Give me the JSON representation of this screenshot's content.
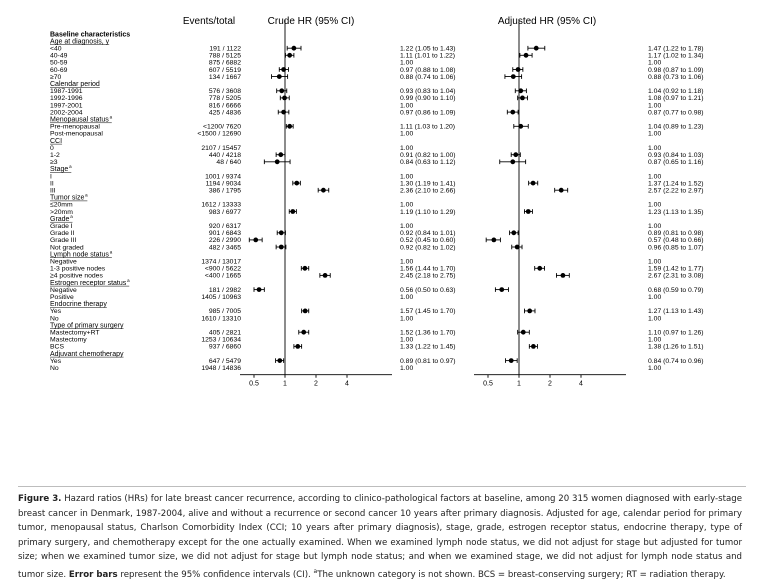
{
  "header": {
    "events_total": "Events/total",
    "crude_hr": "Crude HR (95% CI)",
    "adjusted_hr": "Adjusted HR (95% CI)"
  },
  "caption": {
    "fig_label": "Figure 3.",
    "text": " Hazard ratios (HRs) for late breast cancer recurrence, according to clinico-pathological factors at baseline, among 20 315 women diagnosed with early-stage breast cancer in Denmark, 1987-2004, alive and without a recurrence or second cancer 10 years after primary diagnosis. Adjusted for age, calendar period for primary tumor, menopausal status, Charlson Comorbidity Index (CCI; 10 years after primary diagnosis), stage, grade, estrogen receptor status, endocrine therapy, type of primary surgery, and chemotherapy except for the one actually examined. When we examined lymph node status, we did not adjust for stage but adjusted for tumor size; when we examined tumor size, we did not adjust for stage but lymph node status; and when we examined stage, we did not adjust for lymph node status and tumor size. ",
    "bold": "Error bars",
    "tail": " represent the 95% confidence intervals (CI). ",
    "footnote_mark": "a",
    "footnote": "The unknown category is not shown. BCS = breast-conserving surgery; RT = radiation therapy."
  },
  "chart_data": {
    "type": "forest",
    "scale": "log",
    "xlim": [
      0.5,
      4
    ],
    "ticks": [
      0.5,
      1,
      2,
      4
    ],
    "tick_labels": [
      "0.5",
      "1",
      "2",
      "4"
    ],
    "panels": [
      "Crude HR (95% CI)",
      "Adjusted HR (95% CI)"
    ],
    "rows": [
      {
        "label": "Baseline characteristics",
        "kind": "title"
      },
      {
        "label": "Age at diagnosis, y",
        "kind": "header"
      },
      {
        "label": "<40",
        "events": "191 / 1122",
        "crude": [
          1.22,
          1.05,
          1.43
        ],
        "crude_text": "1.22 (1.05 to 1.43)",
        "adj": [
          1.47,
          1.22,
          1.78
        ],
        "adj_text": "1.47 (1.22 to 1.78)"
      },
      {
        "label": "40-49",
        "events": "788 / 5125",
        "crude": [
          1.11,
          1.01,
          1.22
        ],
        "crude_text": "1.11 (1.01 to 1.22)",
        "adj": [
          1.17,
          1.02,
          1.34
        ],
        "adj_text": "1.17 (1.02 to 1.34)"
      },
      {
        "label": "50-59",
        "events": "875 / 6882",
        "ref": true,
        "crude_text": "1.00",
        "adj_text": "1.00"
      },
      {
        "label": "60-69",
        "events": "607 / 5519",
        "crude": [
          0.97,
          0.88,
          1.08
        ],
        "crude_text": "0.97 (0.88 to 1.08)",
        "adj": [
          0.98,
          0.87,
          1.09
        ],
        "adj_text": "0.98 (0.87 to 1.09)"
      },
      {
        "label": "≥70",
        "events": "134 / 1667",
        "crude": [
          0.88,
          0.74,
          1.06
        ],
        "crude_text": "0.88 (0.74 to 1.06)",
        "adj": [
          0.88,
          0.73,
          1.06
        ],
        "adj_text": "0.88 (0.73 to 1.06)"
      },
      {
        "label": "Calendar period",
        "kind": "header"
      },
      {
        "label": "1987-1991",
        "events": "576 / 3608",
        "crude": [
          0.93,
          0.83,
          1.04
        ],
        "crude_text": "0.93 (0.83 to 1.04)",
        "adj": [
          1.04,
          0.92,
          1.18
        ],
        "adj_text": "1.04 (0.92 to 1.18)"
      },
      {
        "label": "1992-1996",
        "events": "778 / 5205",
        "crude": [
          0.99,
          0.9,
          1.1
        ],
        "crude_text": "0.99 (0.90 to 1.10)",
        "adj": [
          1.08,
          0.97,
          1.21
        ],
        "adj_text": "1.08 (0.97 to 1.21)"
      },
      {
        "label": "1997-2001",
        "events": "816 / 6666",
        "ref": true,
        "crude_text": "1.00",
        "adj_text": "1.00"
      },
      {
        "label": "2002-2004",
        "events": "425 / 4836",
        "crude": [
          0.97,
          0.86,
          1.09
        ],
        "crude_text": "0.97 (0.86 to 1.09)",
        "adj": [
          0.87,
          0.77,
          0.98
        ],
        "adj_text": "0.87 (0.77 to 0.98)"
      },
      {
        "label": "Menopausal status",
        "sup": "a",
        "kind": "header"
      },
      {
        "label": "Pre-menopausal",
        "events": "<1200/ 7620",
        "crude": [
          1.11,
          1.03,
          1.2
        ],
        "crude_text": "1.11 (1.03 to 1.20)",
        "adj": [
          1.04,
          0.89,
          1.23
        ],
        "adj_text": "1.04 (0.89 to 1.23)"
      },
      {
        "label": "Post-menopausal",
        "events": "<1500 / 12690",
        "ref": true,
        "crude_text": "1.00",
        "adj_text": "1.00"
      },
      {
        "label": "CCI",
        "kind": "header"
      },
      {
        "label": "0",
        "events": "2107 / 15457",
        "ref": true,
        "crude_text": "1.00",
        "adj_text": "1.00"
      },
      {
        "label": "1-2",
        "events": "440 / 4218",
        "crude": [
          0.91,
          0.82,
          1.0
        ],
        "crude_text": "0.91 (0.82 to 1.00)",
        "adj": [
          0.93,
          0.84,
          1.03
        ],
        "adj_text": "0.93 (0.84 to 1.03)"
      },
      {
        "label": "≥3",
        "events": "48 / 640",
        "crude": [
          0.84,
          0.63,
          1.12
        ],
        "crude_text": "0.84 (0.63 to 1.12)",
        "adj": [
          0.87,
          0.65,
          1.16
        ],
        "adj_text": "0.87 (0.65 to 1.16)"
      },
      {
        "label": "Stage",
        "sup": "a",
        "kind": "header"
      },
      {
        "label": "I",
        "events": "1001 / 9374",
        "ref": true,
        "crude_text": "1.00",
        "adj_text": "1.00"
      },
      {
        "label": "II",
        "events": "1194 / 9034",
        "crude": [
          1.3,
          1.19,
          1.41
        ],
        "crude_text": "1.30 (1.19 to 1.41)",
        "adj": [
          1.37,
          1.24,
          1.52
        ],
        "adj_text": "1.37 (1.24 to 1.52)"
      },
      {
        "label": "III",
        "events": "386 / 1795",
        "crude": [
          2.36,
          2.1,
          2.66
        ],
        "crude_text": "2.36 (2.10 to 2.66)",
        "adj": [
          2.57,
          2.22,
          2.97
        ],
        "adj_text": "2.57 (2.22 to 2.97)"
      },
      {
        "label": "Tumor size",
        "sup": "a",
        "kind": "header"
      },
      {
        "label": "≤20mm",
        "events": "1612 / 13333",
        "ref": true,
        "crude_text": "1.00",
        "adj_text": "1.00"
      },
      {
        "label": ">20mm",
        "events": "983 / 6977",
        "crude": [
          1.19,
          1.1,
          1.29
        ],
        "crude_text": "1.19 (1.10 to 1.29)",
        "adj": [
          1.23,
          1.13,
          1.35
        ],
        "adj_text": "1.23 (1.13 to 1.35)"
      },
      {
        "label": "Grade",
        "sup": "a",
        "kind": "header"
      },
      {
        "label": "Grade I",
        "events": "920 / 6317",
        "ref": true,
        "crude_text": "1.00",
        "adj_text": "1.00"
      },
      {
        "label": "Grade II",
        "events": "901 / 6843",
        "crude": [
          0.92,
          0.84,
          1.01
        ],
        "crude_text": "0.92 (0.84 to 1.01)",
        "adj": [
          0.89,
          0.81,
          0.98
        ],
        "adj_text": "0.89 (0.81 to 0.98)"
      },
      {
        "label": "Grade III",
        "events": "226 / 2990",
        "crude": [
          0.52,
          0.45,
          0.6
        ],
        "crude_text": "0.52 (0.45 to 0.60)",
        "adj": [
          0.57,
          0.48,
          0.66
        ],
        "adj_text": "0.57 (0.48 to 0.66)"
      },
      {
        "label": "Not graded",
        "events": "482 / 3465",
        "crude": [
          0.92,
          0.82,
          1.02
        ],
        "crude_text": "0.92 (0.82 to 1.02)",
        "adj": [
          0.96,
          0.85,
          1.07
        ],
        "adj_text": "0.96 (0.85 to 1.07)"
      },
      {
        "label": "Lymph node status",
        "sup": "a",
        "kind": "header"
      },
      {
        "label": "Negative",
        "events": "1374 / 13017",
        "ref": true,
        "crude_text": "1.00",
        "adj_text": "1.00"
      },
      {
        "label": "1-3 positive nodes",
        "events": "<900 / 5622",
        "crude": [
          1.56,
          1.44,
          1.7
        ],
        "crude_text": "1.56 (1.44 to 1.70)",
        "adj": [
          1.59,
          1.42,
          1.77
        ],
        "adj_text": "1.59 (1.42 to 1.77)"
      },
      {
        "label": "≥4 positive nodes",
        "events": "<400 / 1665",
        "crude": [
          2.45,
          2.18,
          2.75
        ],
        "crude_text": "2.45 (2.18 to 2.75)",
        "adj": [
          2.67,
          2.31,
          3.08
        ],
        "adj_text": "2.67 (2.31 to 3.08)"
      },
      {
        "label": "Estrogen receptor status",
        "sup": "a",
        "kind": "header"
      },
      {
        "label": "Negative",
        "events": "181 / 2982",
        "crude": [
          0.56,
          0.5,
          0.63
        ],
        "crude_text": "0.56 (0.50 to 0.63)",
        "adj": [
          0.68,
          0.59,
          0.79
        ],
        "adj_text": "0.68 (0.59 to 0.79)"
      },
      {
        "label": "Positive",
        "events": "1405 / 10963",
        "ref": true,
        "crude_text": "1.00",
        "adj_text": "1.00"
      },
      {
        "label": "Endocrine therapy",
        "kind": "header"
      },
      {
        "label": "Yes",
        "events": "985 / 7005",
        "crude": [
          1.57,
          1.45,
          1.7
        ],
        "crude_text": "1.57 (1.45 to 1.70)",
        "adj": [
          1.27,
          1.13,
          1.43
        ],
        "adj_text": "1.27 (1.13 to 1.43)"
      },
      {
        "label": "No",
        "events": "1610 / 13310",
        "ref": true,
        "crude_text": "1.00",
        "adj_text": "1.00"
      },
      {
        "label": "Type of primary surgery",
        "kind": "header"
      },
      {
        "label": "Mastectomy+RT",
        "events": "405 / 2821",
        "crude": [
          1.52,
          1.36,
          1.7
        ],
        "crude_text": "1.52 (1.36 to 1.70)",
        "adj": [
          1.1,
          0.97,
          1.26
        ],
        "adj_text": "1.10 (0.97 to 1.26)"
      },
      {
        "label": "Mastectomy",
        "events": "1253 / 10634",
        "ref": true,
        "crude_text": "1.00",
        "adj_text": "1.00"
      },
      {
        "label": "BCS",
        "events": "937 / 6860",
        "crude": [
          1.33,
          1.22,
          1.45
        ],
        "crude_text": "1.33 (1.22 to 1.45)",
        "adj": [
          1.38,
          1.26,
          1.51
        ],
        "adj_text": "1.38 (1.26 to 1.51)"
      },
      {
        "label": "Adjuvant chemotherapy",
        "kind": "header"
      },
      {
        "label": "Yes",
        "events": "647 / 5479",
        "crude": [
          0.89,
          0.81,
          0.97
        ],
        "crude_text": "0.89 (0.81 to 0.97)",
        "adj": [
          0.84,
          0.74,
          0.96
        ],
        "adj_text": "0.84 (0.74 to 0.96)"
      },
      {
        "label": "No",
        "events": "1948 / 14836",
        "ref": true,
        "crude_text": "1.00",
        "adj_text": "1.00"
      }
    ]
  }
}
